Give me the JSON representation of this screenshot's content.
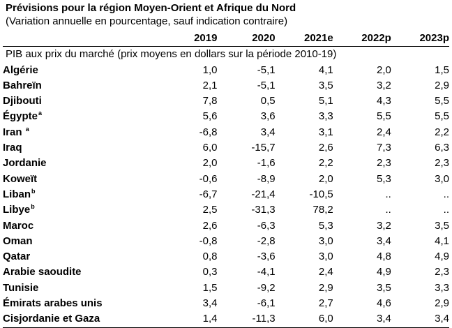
{
  "title": "Prévisions pour la région Moyen-Orient et Afrique du Nord",
  "subtitle": "(Variation annuelle en pourcentage, sauf indication contraire)",
  "columns": [
    "2019",
    "2020",
    "2021e",
    "2022p",
    "2023p"
  ],
  "section_label": "PIB aux prix du marché (prix moyens en dollars sur la période 2010-19)",
  "rows": [
    {
      "name": "Algérie",
      "note": "",
      "values": [
        "1,0",
        "-5,1",
        "4,1",
        "2,0",
        "1,5"
      ]
    },
    {
      "name": "Bahreïn",
      "note": "",
      "values": [
        "2,1",
        "-5,1",
        "3,5",
        "3,2",
        "2,9"
      ]
    },
    {
      "name": "Djibouti",
      "note": "",
      "values": [
        "7,8",
        "0,5",
        "5,1",
        "4,3",
        "5,5"
      ]
    },
    {
      "name": "Égypte",
      "note": "a",
      "values": [
        "5,6",
        "3,6",
        "3,3",
        "5,5",
        "5,5"
      ]
    },
    {
      "name": "Iran ",
      "note": "a",
      "values": [
        "-6,8",
        "3,4",
        "3,1",
        "2,4",
        "2,2"
      ]
    },
    {
      "name": "Iraq",
      "note": "",
      "values": [
        "6,0",
        "-15,7",
        "2,6",
        "7,3",
        "6,3"
      ]
    },
    {
      "name": "Jordanie",
      "note": "",
      "values": [
        "2,0",
        "-1,6",
        "2,2",
        "2,3",
        "2,3"
      ]
    },
    {
      "name": "Koweït",
      "note": "",
      "values": [
        "-0,6",
        "-8,9",
        "2,0",
        "5,3",
        "3,0"
      ]
    },
    {
      "name": "Liban",
      "note": "b",
      "values": [
        "-6,7",
        "-21,4",
        "-10,5",
        "..",
        ".."
      ]
    },
    {
      "name": "Libye",
      "note": "b",
      "values": [
        "2,5",
        "-31,3",
        "78,2",
        "..",
        ".."
      ]
    },
    {
      "name": "Maroc",
      "note": "",
      "values": [
        "2,6",
        "-6,3",
        "5,3",
        "3,2",
        "3,5"
      ]
    },
    {
      "name": "Oman",
      "note": "",
      "values": [
        "-0,8",
        "-2,8",
        "3,0",
        "3,4",
        "4,1"
      ]
    },
    {
      "name": "Qatar",
      "note": "",
      "values": [
        "0,8",
        "-3,6",
        "3,0",
        "4,8",
        "4,9"
      ]
    },
    {
      "name": "Arabie saoudite",
      "note": "",
      "values": [
        "0,3",
        "-4,1",
        "2,4",
        "4,9",
        "2,3"
      ]
    },
    {
      "name": "Tunisie",
      "note": "",
      "values": [
        "1,5",
        "-9,2",
        "2,9",
        "3,5",
        "3,3"
      ]
    },
    {
      "name": "Émirats arabes unis",
      "note": "",
      "values": [
        "3,4",
        "-6,1",
        "2,7",
        "4,6",
        "2,9"
      ]
    },
    {
      "name": "Cisjordanie et Gaza",
      "note": "",
      "values": [
        "1,4",
        "-11,3",
        "6,0",
        "3,4",
        "3,4"
      ]
    }
  ]
}
